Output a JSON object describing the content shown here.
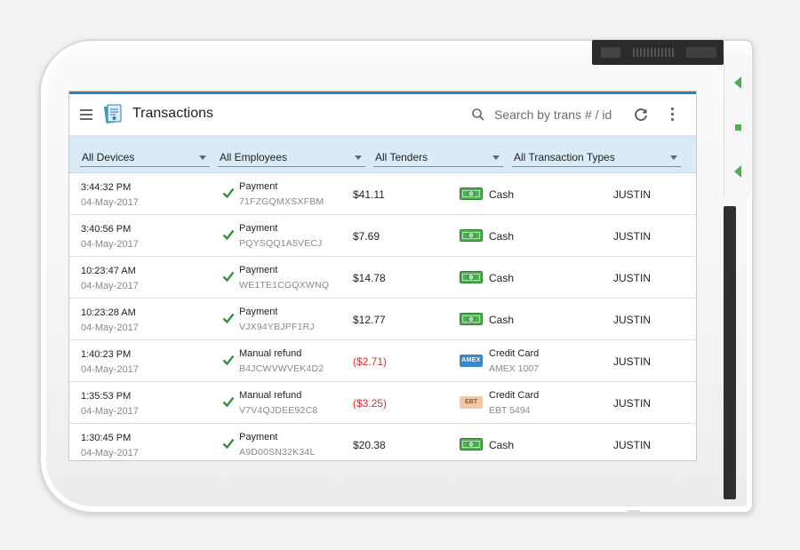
{
  "app": {
    "title": "Transactions"
  },
  "search": {
    "placeholder": "Search by trans # / id"
  },
  "filters": [
    {
      "label": "All Devices"
    },
    {
      "label": "All Employees"
    },
    {
      "label": "All Tenders"
    },
    {
      "label": "All Transaction Types"
    }
  ],
  "transactions": [
    {
      "time": "3:44:32 PM",
      "date": "04-May-2017",
      "type": "Payment",
      "id": "71FZGQMXSXFBM",
      "amount": "$41.11",
      "tender": "Cash",
      "tender_detail": "",
      "employee": "JUSTIN"
    },
    {
      "time": "3:40:56 PM",
      "date": "04-May-2017",
      "type": "Payment",
      "id": "PQYSQQ1A5VECJ",
      "amount": "$7.69",
      "tender": "Cash",
      "tender_detail": "",
      "employee": "JUSTIN"
    },
    {
      "time": "10:23:47 AM",
      "date": "04-May-2017",
      "type": "Payment",
      "id": "WE1TE1CGQXWNQ",
      "amount": "$14.78",
      "tender": "Cash",
      "tender_detail": "",
      "employee": "JUSTIN"
    },
    {
      "time": "10:23:28 AM",
      "date": "04-May-2017",
      "type": "Payment",
      "id": "VJX94YBJPF1RJ",
      "amount": "$12.77",
      "tender": "Cash",
      "tender_detail": "",
      "employee": "JUSTIN"
    },
    {
      "time": "1:40:23 PM",
      "date": "04-May-2017",
      "type": "Manual refund",
      "id": "B4JCWVWVEK4D2",
      "amount": "($2.71)",
      "tender": "Credit Card",
      "tender_detail": "AMEX 1007",
      "card_badge": "AMEX",
      "employee": "JUSTIN"
    },
    {
      "time": "1:35:53 PM",
      "date": "04-May-2017",
      "type": "Manual refund",
      "id": "V7V4QJDEE92C8",
      "amount": "($3.25)",
      "tender": "Credit Card",
      "tender_detail": "EBT 5494",
      "card_badge": "EBT",
      "employee": "JUSTIN"
    },
    {
      "time": "1:30:45 PM",
      "date": "04-May-2017",
      "type": "Payment",
      "id": "A9D00SN32K34L",
      "amount": "$20.38",
      "tender": "Cash",
      "tender_detail": "",
      "employee": "JUSTIN"
    }
  ],
  "colors": {
    "accent": "#2c80c6",
    "filter_bar": "#d9ebf6",
    "success": "#388e3c",
    "refund": "#d32f2f",
    "cash": "#4caf50"
  },
  "icons": {
    "menu": "hamburger-icon",
    "logo": "receipt-icon",
    "search": "search-icon",
    "refresh": "refresh-icon",
    "more": "more-vert-icon",
    "status": "check-icon",
    "cash": "cash-icon",
    "amex": "amex-card-icon",
    "ebt": "ebt-card-icon"
  }
}
